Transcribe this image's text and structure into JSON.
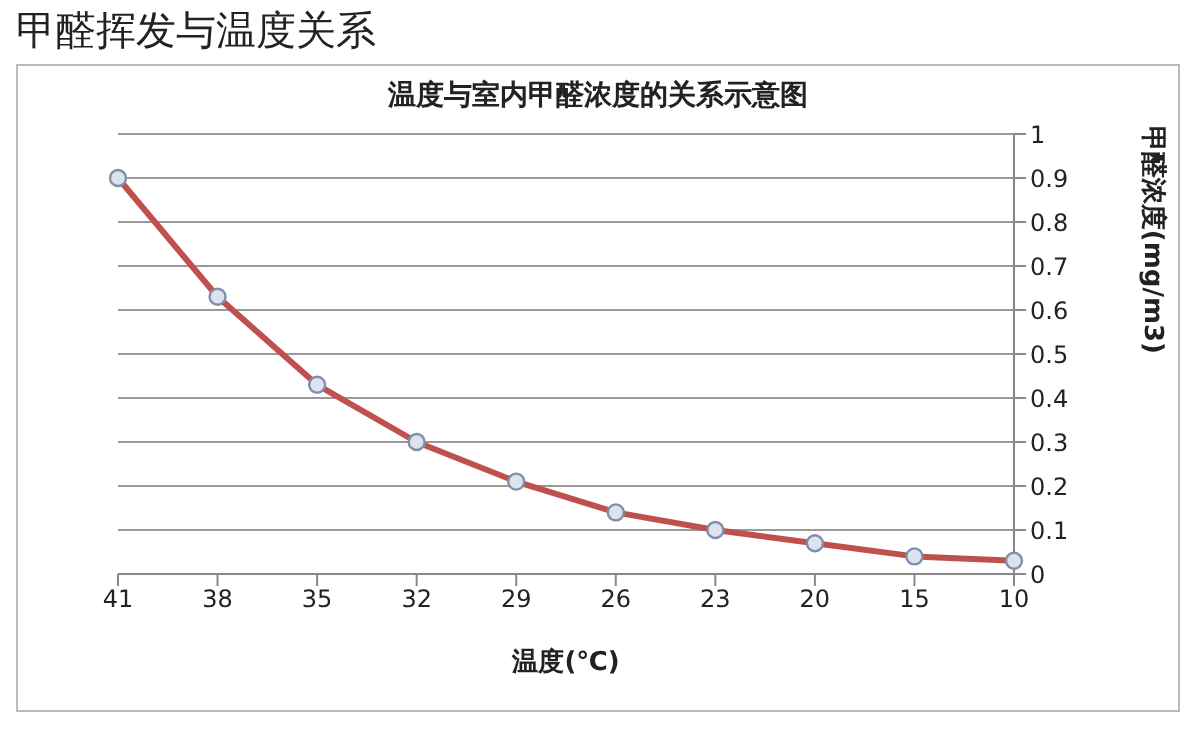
{
  "chart_data": {
    "type": "line",
    "title": "甲醛挥发与温度关系",
    "subtitle": "温度与室内甲醛浓度的关系示意图",
    "xlabel": "温度(℃)",
    "ylabel": "甲醛浓度(mg/m3)",
    "categories": [
      "41",
      "38",
      "35",
      "32",
      "29",
      "26",
      "23",
      "20",
      "15",
      "10"
    ],
    "series": [
      {
        "color": "#c0504d",
        "values": [
          0.9,
          0.63,
          0.43,
          0.3,
          0.21,
          0.14,
          0.1,
          0.07,
          0.04,
          0.03
        ]
      }
    ],
    "ylim": [
      0,
      1
    ],
    "yticks": [
      0,
      0.1,
      0.2,
      0.3,
      0.4,
      0.5,
      0.6,
      0.7,
      0.8,
      0.9,
      1
    ],
    "grid": "y",
    "marker": "circle",
    "line_style": "solid",
    "legend": false
  }
}
